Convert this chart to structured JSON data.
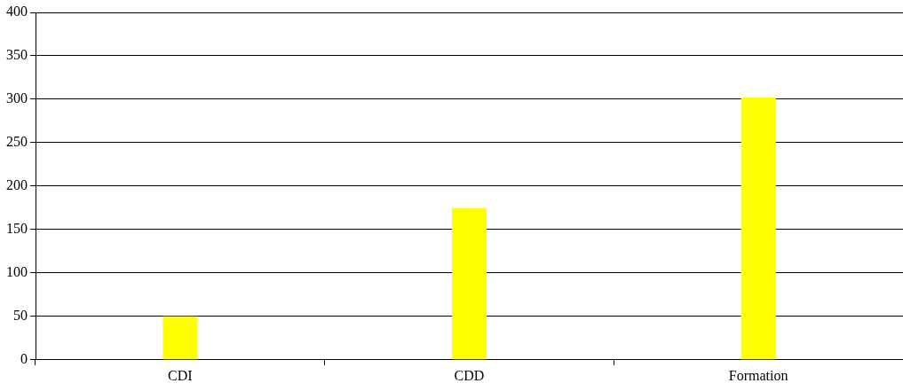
{
  "chart_data": {
    "type": "bar",
    "categories": [
      "CDI",
      "CDD",
      "Formation"
    ],
    "values": [
      50,
      175,
      302
    ],
    "color": "#ffff00",
    "ylim": [
      0,
      400
    ],
    "yticks": [
      0,
      50,
      100,
      150,
      200,
      250,
      300,
      350,
      400
    ],
    "grid": "y",
    "legend": false
  }
}
